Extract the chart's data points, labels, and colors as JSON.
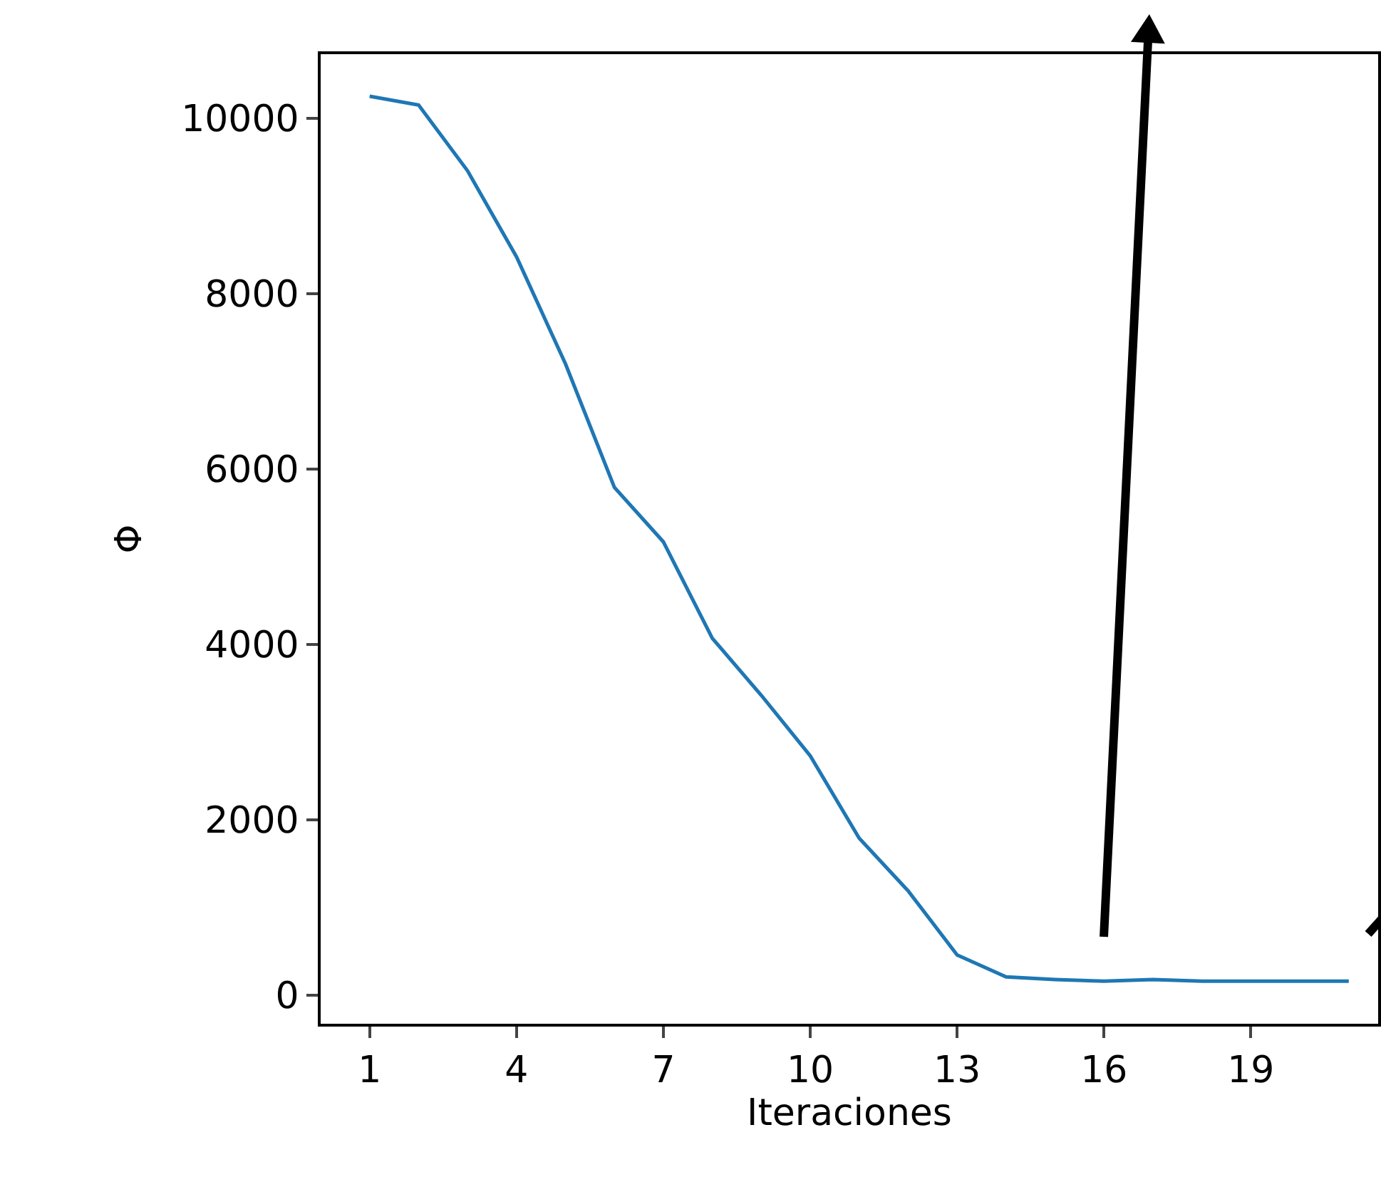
{
  "chart_data": {
    "type": "line",
    "xlabel": "Iteraciones",
    "ylabel": "Φ",
    "x": [
      1,
      2,
      3,
      4,
      5,
      6,
      7,
      8,
      9,
      10,
      11,
      12,
      13,
      14,
      15,
      16,
      17,
      18,
      19,
      20,
      21
    ],
    "series": [
      {
        "color": "#1f77b4",
        "values": [
          10250,
          10150,
          9400,
          8420,
          7200,
          5790,
          5170,
          4070,
          3420,
          2730,
          1790,
          1190,
          460,
          210,
          180,
          160,
          180,
          160,
          160,
          160,
          160
        ]
      }
    ],
    "xlim": [
      0,
      21.6
    ],
    "ylim": [
      -325,
      10730
    ],
    "xticks": [
      1,
      4,
      7,
      10,
      13,
      16,
      19
    ],
    "yticks": [
      0,
      2000,
      4000,
      6000,
      8000,
      10000
    ],
    "marker": "none",
    "line_style": "solid"
  }
}
